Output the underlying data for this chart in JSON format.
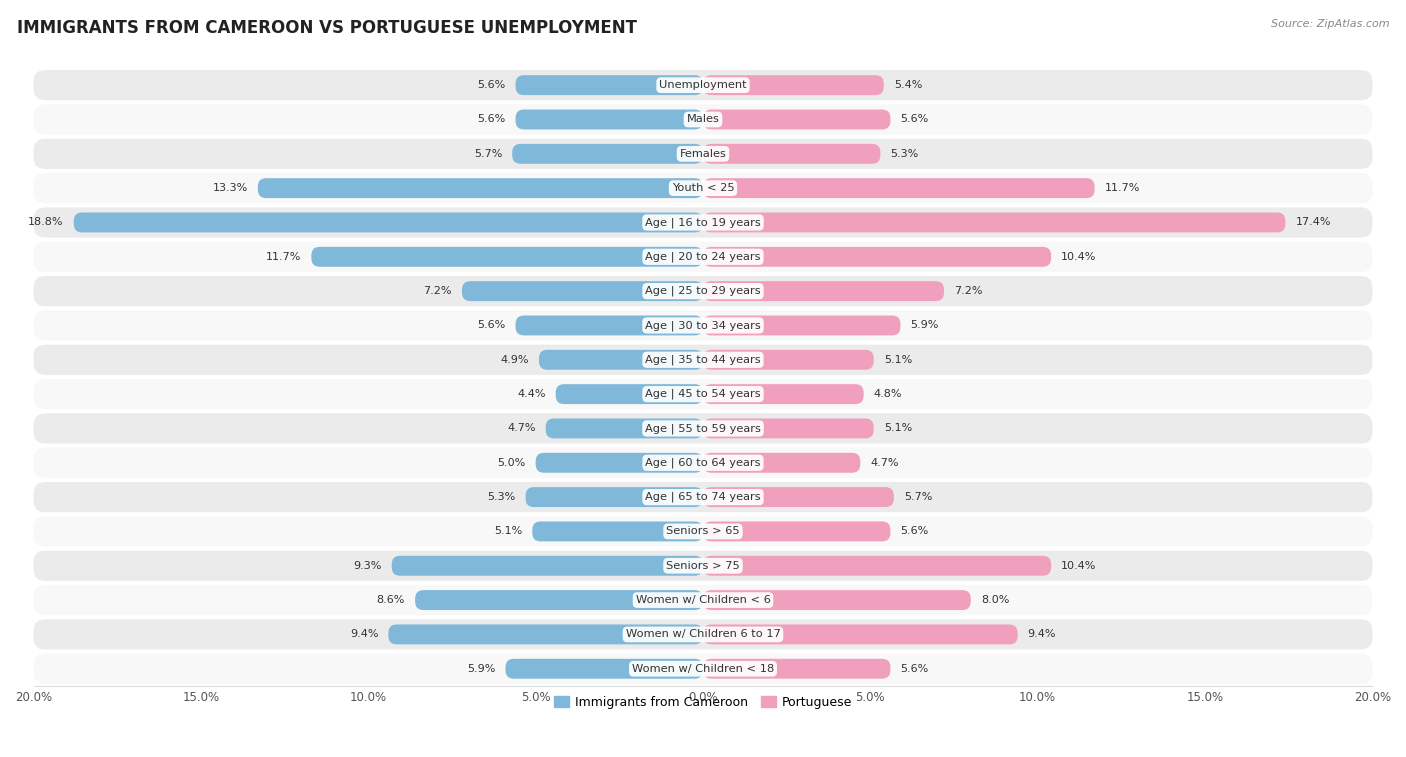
{
  "title": "IMMIGRANTS FROM CAMEROON VS PORTUGUESE UNEMPLOYMENT",
  "source": "Source: ZipAtlas.com",
  "categories": [
    "Unemployment",
    "Males",
    "Females",
    "Youth < 25",
    "Age | 16 to 19 years",
    "Age | 20 to 24 years",
    "Age | 25 to 29 years",
    "Age | 30 to 34 years",
    "Age | 35 to 44 years",
    "Age | 45 to 54 years",
    "Age | 55 to 59 years",
    "Age | 60 to 64 years",
    "Age | 65 to 74 years",
    "Seniors > 65",
    "Seniors > 75",
    "Women w/ Children < 6",
    "Women w/ Children 6 to 17",
    "Women w/ Children < 18"
  ],
  "cameroon_values": [
    5.6,
    5.6,
    5.7,
    13.3,
    18.8,
    11.7,
    7.2,
    5.6,
    4.9,
    4.4,
    4.7,
    5.0,
    5.3,
    5.1,
    9.3,
    8.6,
    9.4,
    5.9
  ],
  "portuguese_values": [
    5.4,
    5.6,
    5.3,
    11.7,
    17.4,
    10.4,
    7.2,
    5.9,
    5.1,
    4.8,
    5.1,
    4.7,
    5.7,
    5.6,
    10.4,
    8.0,
    9.4,
    5.6
  ],
  "cameroon_color": "#7fb8d8",
  "portuguese_color": "#f0a0bc",
  "row_bg_light": "#ebebeb",
  "row_bg_white": "#f8f8f8",
  "xlim": 20.0,
  "bar_height": 0.58,
  "label_fontsize": 8.0,
  "category_fontsize": 8.2,
  "title_fontsize": 12,
  "legend_fontsize": 9,
  "tick_fontsize": 8.5
}
